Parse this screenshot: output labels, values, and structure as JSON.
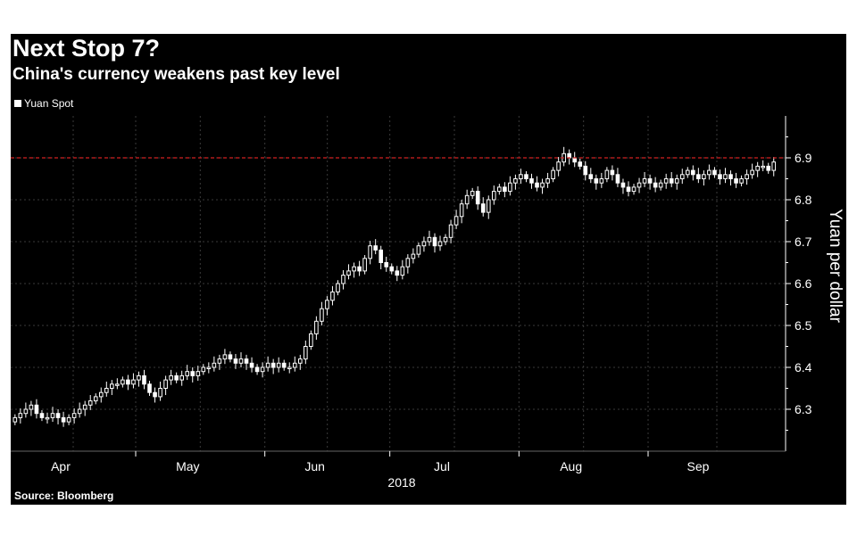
{
  "chart_data": {
    "type": "candlestick",
    "title": "Next Stop 7?",
    "subtitle": "China's currency weakens past key level",
    "legend": [
      {
        "name": "Yuan Spot",
        "color": "#ffffff"
      }
    ],
    "source": "Source: Bloomberg",
    "ylabel": "Yuan per dollar",
    "xlabel": "2018",
    "ylim": [
      6.2,
      7.0
    ],
    "yticks": [
      "6.3",
      "6.4",
      "6.5",
      "6.6",
      "6.7",
      "6.8",
      "6.9"
    ],
    "xticks": [
      "Apr",
      "May",
      "Jun",
      "Jul",
      "Aug",
      "Sep"
    ],
    "x_range_days": [
      0,
      186
    ],
    "month_start_days": [
      0,
      30,
      61,
      91,
      122,
      153
    ],
    "reference_line": {
      "value": 6.9,
      "color": "#d12020"
    },
    "series": [
      {
        "name": "Yuan Spot",
        "close": [
          6.28,
          6.29,
          6.3,
          6.31,
          6.29,
          6.28,
          6.28,
          6.29,
          6.28,
          6.27,
          6.28,
          6.29,
          6.3,
          6.31,
          6.32,
          6.33,
          6.34,
          6.35,
          6.36,
          6.36,
          6.37,
          6.36,
          6.37,
          6.38,
          6.36,
          6.34,
          6.33,
          6.35,
          6.37,
          6.38,
          6.37,
          6.38,
          6.39,
          6.38,
          6.39,
          6.4,
          6.4,
          6.41,
          6.42,
          6.43,
          6.42,
          6.41,
          6.42,
          6.41,
          6.4,
          6.39,
          6.4,
          6.41,
          6.4,
          6.41,
          6.4,
          6.4,
          6.41,
          6.42,
          6.45,
          6.48,
          6.51,
          6.54,
          6.56,
          6.58,
          6.6,
          6.62,
          6.63,
          6.64,
          6.63,
          6.66,
          6.69,
          6.68,
          6.65,
          6.64,
          6.63,
          6.62,
          6.64,
          6.66,
          6.67,
          6.69,
          6.7,
          6.71,
          6.69,
          6.7,
          6.71,
          6.74,
          6.76,
          6.79,
          6.81,
          6.82,
          6.79,
          6.77,
          6.8,
          6.82,
          6.83,
          6.82,
          6.84,
          6.85,
          6.86,
          6.85,
          6.84,
          6.83,
          6.84,
          6.85,
          6.87,
          6.89,
          6.91,
          6.9,
          6.89,
          6.88,
          6.86,
          6.85,
          6.84,
          6.85,
          6.87,
          6.86,
          6.84,
          6.83,
          6.82,
          6.83,
          6.84,
          6.85,
          6.84,
          6.83,
          6.84,
          6.85,
          6.84,
          6.85,
          6.86,
          6.87,
          6.86,
          6.85,
          6.86,
          6.87,
          6.86,
          6.85,
          6.86,
          6.85,
          6.84,
          6.85,
          6.86,
          6.87,
          6.88,
          6.88,
          6.87,
          6.89
        ]
      }
    ]
  }
}
